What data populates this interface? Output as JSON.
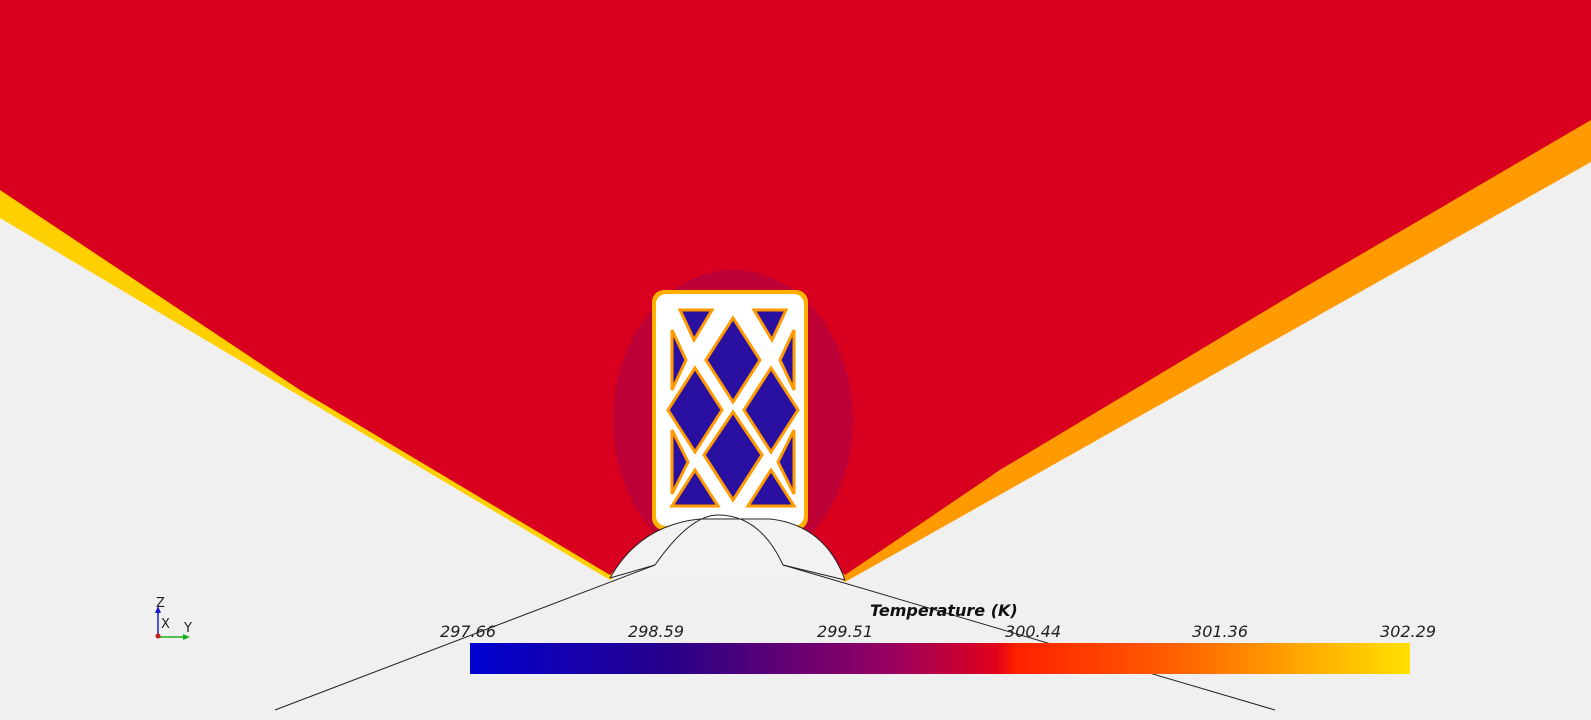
{
  "legend": {
    "title": "Temperature (K)",
    "ticks": [
      "297.66",
      "298.59",
      "299.51",
      "300.44",
      "301.36",
      "302.29"
    ],
    "colormap": [
      "#0000d0",
      "#2a0088",
      "#9a0060",
      "#e0001a",
      "#ff3000",
      "#ff8000",
      "#ffe000"
    ]
  },
  "axes": {
    "z": "Z",
    "x": "X",
    "y": "Y"
  },
  "colors": {
    "background": "#f0f0f0",
    "field": "#d8001e",
    "hot": "#ffe600",
    "cold": "#1a0090",
    "solid": "#ffffff"
  }
}
